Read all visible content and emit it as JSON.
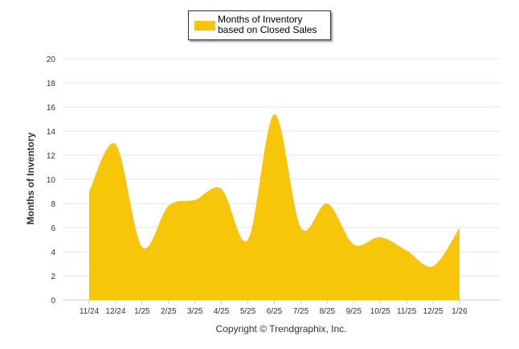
{
  "chart_data": {
    "type": "area",
    "title": "",
    "legend": {
      "label": "Months of Inventory based on Closed Sales",
      "placement": "top-center"
    },
    "ylabel": "Months of Inventory",
    "xlabel": "",
    "ylim": [
      0,
      20
    ],
    "yticks": [
      "0",
      "2",
      "4",
      "6",
      "8",
      "10",
      "12",
      "14",
      "16",
      "18",
      "20"
    ],
    "categories": [
      "11/24",
      "12/24",
      "1/25",
      "2/25",
      "3/25",
      "4/25",
      "5/25",
      "6/25",
      "7/25",
      "8/25",
      "9/25",
      "10/25",
      "11/25",
      "12/25",
      "1/26"
    ],
    "series": [
      {
        "name": "Months of Inventory based on Closed Sales",
        "values": [
          9.0,
          12.9,
          4.4,
          7.8,
          8.3,
          9.2,
          5.0,
          15.4,
          6.0,
          8.0,
          4.6,
          5.2,
          4.1,
          2.8,
          6.0
        ],
        "color": "#f8c608"
      }
    ],
    "grid": true
  },
  "footer": {
    "copyright": "Copyright © Trendgraphix, Inc."
  }
}
